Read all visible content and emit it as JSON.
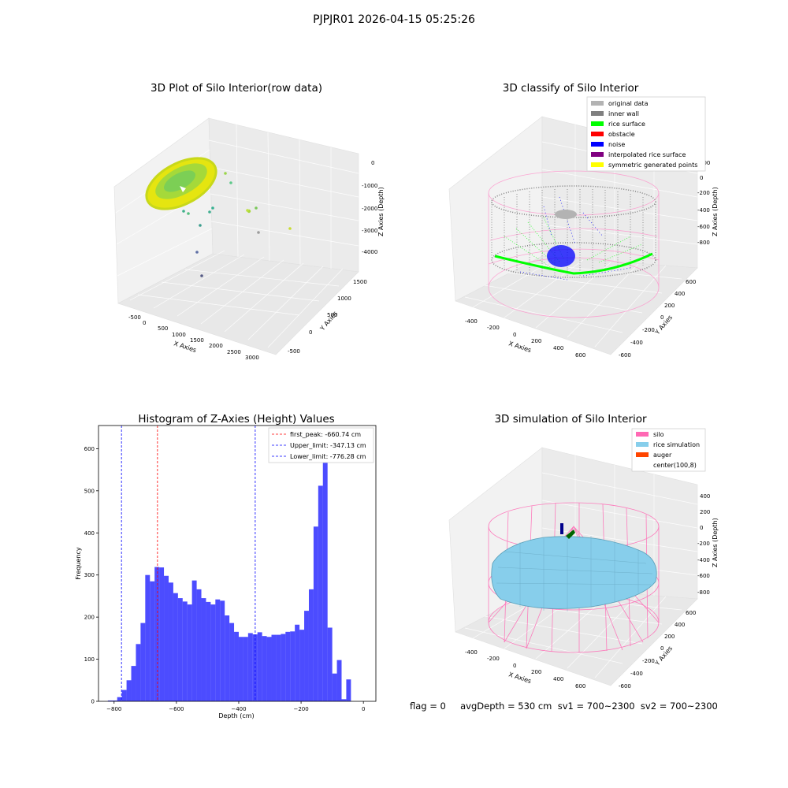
{
  "suptitle": "PJPJR01 2026-04-15 05:25:26",
  "panels": {
    "p1": {
      "title": "3D Plot of Silo Interior(row data)",
      "xlabel": "X Axies",
      "ylabel": "Y Axies",
      "zlabel": "Z Axies (Depth)",
      "xticks": [
        "-500",
        "0",
        "500",
        "1000",
        "1500",
        "2000",
        "2500",
        "3000"
      ],
      "yticks": [
        "-500",
        "0",
        "500",
        "1000",
        "1500"
      ],
      "zticks": [
        "0",
        "-1000",
        "-2000",
        "-3000",
        "-4000"
      ]
    },
    "p2": {
      "title": "3D classify of Silo Interior",
      "xlabel": "X Axies",
      "ylabel": "Y Axies",
      "zlabel": "Z Axies (Depth)",
      "xticks": [
        "-400",
        "-200",
        "0",
        "200",
        "400",
        "600"
      ],
      "yticks": [
        "-600",
        "-400",
        "-200",
        "0",
        "200",
        "400",
        "600"
      ],
      "zticks": [
        "200",
        "0",
        "-200",
        "-400",
        "-600",
        "-800"
      ],
      "legend": [
        {
          "label": "original data",
          "color": "#b3b3b3"
        },
        {
          "label": "inner wall",
          "color": "#808080"
        },
        {
          "label": "rice surface",
          "color": "#00ff00"
        },
        {
          "label": "obstacle",
          "color": "#ff0000"
        },
        {
          "label": "noise",
          "color": "#0000ff"
        },
        {
          "label": "interpolated rice surface",
          "color": "#800080"
        },
        {
          "label": "symmetric generated points",
          "color": "#ffff00"
        }
      ]
    },
    "p3": {
      "title": "Histogram of Z-Axies (Height) Values",
      "xlabel": "Depth (cm)",
      "ylabel": "Frequency",
      "legend": [
        {
          "label": "first_peak: -660.74 cm",
          "color": "#ff0000"
        },
        {
          "label": "Upper_limit: -347.13 cm",
          "color": "#0000ff"
        },
        {
          "label": "Lower_limit: -776.28 cm",
          "color": "#0000ff"
        }
      ]
    },
    "p4": {
      "title": "3D simulation of Silo Interior",
      "xlabel": "X Axies",
      "ylabel": "Y Axies",
      "zlabel": "Z Axies (Depth)",
      "xticks": [
        "-400",
        "-200",
        "0",
        "200",
        "400",
        "600"
      ],
      "yticks": [
        "-600",
        "-400",
        "-200",
        "0",
        "200",
        "400",
        "600"
      ],
      "zticks": [
        "400",
        "200",
        "0",
        "-200",
        "-400",
        "-600",
        "-800"
      ],
      "legend": [
        {
          "label": "silo",
          "color": "#ff69b4"
        },
        {
          "label": "rice simulation",
          "color": "#87ceeb"
        },
        {
          "label": "auger",
          "color": "#ff4500"
        },
        {
          "label": "center(100,8)",
          "color": ""
        }
      ]
    }
  },
  "footer": "flag = 0     avgDepth = 530 cm  sv1 = 700~2300  sv2 = 700~2300",
  "chart_data": [
    {
      "type": "bar",
      "title": "Histogram of Z-Axies (Height) Values",
      "xlabel": "Depth (cm)",
      "ylabel": "Frequency",
      "xlim": [
        -850,
        40
      ],
      "ylim": [
        0,
        655
      ],
      "xticks": [
        -800,
        -600,
        -400,
        -200,
        0
      ],
      "yticks": [
        0,
        100,
        200,
        300,
        400,
        500,
        600
      ],
      "bin_start": -820,
      "bin_width": 15,
      "values": [
        2,
        2,
        10,
        27,
        50,
        84,
        136,
        186,
        300,
        285,
        319,
        318,
        298,
        282,
        257,
        245,
        237,
        230,
        287,
        266,
        245,
        236,
        230,
        242,
        239,
        204,
        186,
        165,
        153,
        153,
        162,
        159,
        164,
        155,
        153,
        158,
        158,
        160,
        165,
        166,
        182,
        170,
        215,
        266,
        415,
        512,
        620,
        175,
        66,
        98,
        5,
        52
      ],
      "color": "#0000ff",
      "vlines": [
        {
          "x": -660.74,
          "color": "#ff0000",
          "label": "first_peak: -660.74 cm"
        },
        {
          "x": -347.13,
          "color": "#0000ff",
          "label": "Upper_limit: -347.13 cm"
        },
        {
          "x": -776.28,
          "color": "#0000ff",
          "label": "Lower_limit: -776.28 cm"
        }
      ],
      "legend_position": "top-right"
    }
  ]
}
